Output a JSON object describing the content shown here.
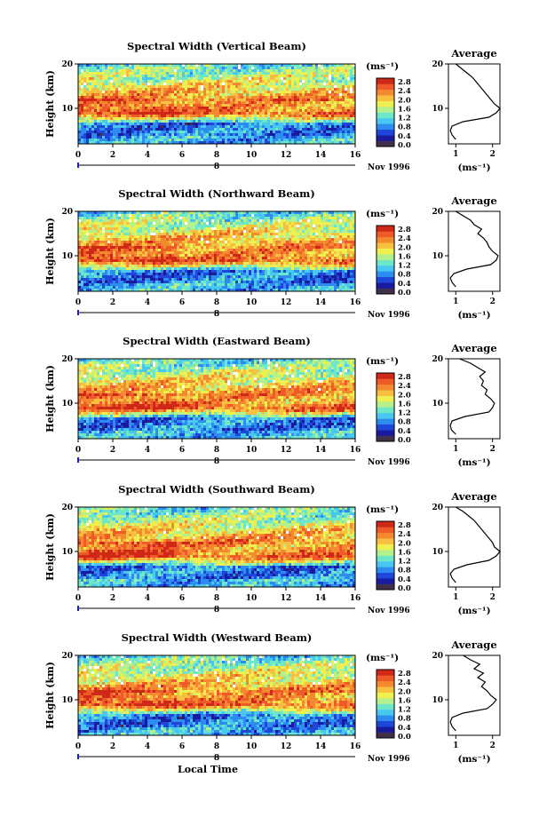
{
  "figure": {
    "x_label": "Local Time",
    "y_label": "Height (km)",
    "date_label": "Nov 1996",
    "day_marker": "8",
    "units": "(ms⁻¹)",
    "avg_title": "Average"
  },
  "colorbar": {
    "ticks": [
      "0.0",
      "0.4",
      "0.8",
      "1.2",
      "1.6",
      "2.0",
      "2.4",
      "2.8"
    ],
    "colors": [
      "#40304a",
      "#1a1a9e",
      "#1e46d8",
      "#2e8cf0",
      "#48c8f0",
      "#6ee6c8",
      "#b4f08c",
      "#eef050",
      "#f8c040",
      "#f48a30",
      "#ee5a28",
      "#d02818"
    ]
  },
  "panels": [
    {
      "title": "Spectral Width (Vertical Beam)",
      "seed": 11
    },
    {
      "title": "Spectral Width (Northward Beam)",
      "seed": 23
    },
    {
      "title": "Spectral Width (Eastward Beam)",
      "seed": 37
    },
    {
      "title": "Spectral Width (Southward Beam)",
      "seed": 51
    },
    {
      "title": "Spectral Width (Westward Beam)",
      "seed": 67
    }
  ],
  "chart_data": [
    {
      "type": "heatmap",
      "title": "Spectral Width (Vertical Beam)",
      "xlabel": "",
      "ylabel": "Height (km)",
      "x_ticks": [
        "0",
        "2",
        "4",
        "6",
        "8",
        "10",
        "12",
        "14",
        "16"
      ],
      "y_ticks": [
        "20",
        "10"
      ],
      "xlim": [
        0,
        16
      ],
      "ylim": [
        2,
        20
      ],
      "colorbar_label": "(ms⁻¹)",
      "colorbar_ticks": [
        0.0,
        0.4,
        0.8,
        1.2,
        1.6,
        2.0,
        2.4,
        2.8
      ],
      "height_km": [
        3,
        4,
        5,
        6,
        7,
        8,
        9,
        10,
        11,
        12,
        13,
        14,
        15,
        16,
        17,
        18,
        19,
        20
      ],
      "mean_width_ms": [
        1.0,
        0.8,
        0.7,
        0.7,
        1.0,
        1.8,
        2.5,
        2.6,
        2.4,
        2.2,
        2.0,
        1.9,
        1.7,
        1.6,
        1.5,
        1.4,
        1.3,
        1.2
      ]
    },
    {
      "type": "line",
      "title": "Average",
      "xlabel": "(ms⁻¹)",
      "ylabel": "",
      "x_ticks": [
        "1",
        "2"
      ],
      "y_ticks": [
        "20",
        "10"
      ],
      "xlim": [
        0.8,
        2.2
      ],
      "ylim": [
        2,
        20
      ],
      "series": [
        {
          "x": [
            1.0,
            0.9,
            0.85,
            0.9,
            1.2,
            1.9,
            2.1,
            2.2,
            2.05,
            1.95,
            1.85,
            1.75,
            1.65,
            1.55,
            1.45,
            1.3,
            1.15,
            1.0
          ],
          "y": [
            3,
            4,
            5,
            6,
            7,
            8,
            9,
            10,
            11,
            12,
            13,
            14,
            15,
            16,
            17,
            18,
            19,
            20
          ]
        }
      ]
    },
    {
      "type": "heatmap",
      "title": "Spectral Width (Northward Beam)",
      "xlabel": "",
      "ylabel": "Height (km)",
      "x_ticks": [
        "0",
        "2",
        "4",
        "6",
        "8",
        "10",
        "12",
        "14",
        "16"
      ],
      "y_ticks": [
        "20",
        "10"
      ],
      "xlim": [
        0,
        16
      ],
      "ylim": [
        2,
        20
      ],
      "colorbar_label": "(ms⁻¹)",
      "colorbar_ticks": [
        0.0,
        0.4,
        0.8,
        1.2,
        1.6,
        2.0,
        2.4,
        2.8
      ]
    },
    {
      "type": "line",
      "title": "Average",
      "xlabel": "(ms⁻¹)",
      "ylabel": "",
      "x_ticks": [
        "1",
        "2"
      ],
      "y_ticks": [
        "20",
        "10"
      ],
      "xlim": [
        0.8,
        2.2
      ],
      "ylim": [
        2,
        20
      ],
      "series": [
        {
          "x": [
            1.0,
            0.9,
            0.85,
            0.95,
            1.3,
            1.95,
            2.1,
            2.15,
            2.0,
            1.9,
            1.85,
            1.75,
            1.6,
            1.7,
            1.5,
            1.4,
            1.2,
            1.0
          ],
          "y": [
            3,
            4,
            5,
            6,
            7,
            8,
            9,
            10,
            11,
            12,
            13,
            14,
            15,
            16,
            17,
            18,
            19,
            20
          ]
        }
      ]
    },
    {
      "type": "heatmap",
      "title": "Spectral Width (Eastward Beam)",
      "xlabel": "",
      "ylabel": "Height (km)",
      "x_ticks": [
        "0",
        "2",
        "4",
        "6",
        "8",
        "10",
        "12",
        "14",
        "16"
      ],
      "y_ticks": [
        "20",
        "10"
      ],
      "xlim": [
        0,
        16
      ],
      "ylim": [
        2,
        20
      ],
      "colorbar_label": "(ms⁻¹)",
      "colorbar_ticks": [
        0.0,
        0.4,
        0.8,
        1.2,
        1.6,
        2.0,
        2.4,
        2.8
      ]
    },
    {
      "type": "line",
      "title": "Average",
      "xlabel": "(ms⁻¹)",
      "ylabel": "",
      "x_ticks": [
        "1",
        "2"
      ],
      "y_ticks": [
        "20",
        "10"
      ],
      "xlim": [
        0.8,
        2.2
      ],
      "ylim": [
        2,
        20
      ],
      "series": [
        {
          "x": [
            1.0,
            0.88,
            0.85,
            0.9,
            1.25,
            1.9,
            2.0,
            2.05,
            1.95,
            1.8,
            1.85,
            1.7,
            1.75,
            1.65,
            1.8,
            1.6,
            1.4,
            1.1
          ],
          "y": [
            3,
            4,
            5,
            6,
            7,
            8,
            9,
            10,
            11,
            12,
            13,
            14,
            15,
            16,
            17,
            18,
            19,
            20
          ]
        }
      ]
    },
    {
      "type": "heatmap",
      "title": "Spectral Width (Southward Beam)",
      "xlabel": "",
      "ylabel": "Height (km)",
      "x_ticks": [
        "0",
        "2",
        "4",
        "6",
        "8",
        "10",
        "12",
        "14",
        "16"
      ],
      "y_ticks": [
        "20",
        "10"
      ],
      "xlim": [
        0,
        16
      ],
      "ylim": [
        2,
        20
      ],
      "colorbar_label": "(ms⁻¹)",
      "colorbar_ticks": [
        0.0,
        0.4,
        0.8,
        1.2,
        1.6,
        2.0,
        2.4,
        2.8
      ]
    },
    {
      "type": "line",
      "title": "Average",
      "xlabel": "(ms⁻¹)",
      "ylabel": "",
      "x_ticks": [
        "1",
        "2"
      ],
      "y_ticks": [
        "20",
        "10"
      ],
      "xlim": [
        0.8,
        2.2
      ],
      "ylim": [
        2,
        20
      ],
      "series": [
        {
          "x": [
            1.0,
            0.9,
            0.85,
            0.95,
            1.3,
            1.9,
            2.1,
            2.2,
            2.05,
            2.0,
            1.9,
            1.8,
            1.7,
            1.6,
            1.5,
            1.35,
            1.2,
            1.0
          ],
          "y": [
            3,
            4,
            5,
            6,
            7,
            8,
            9,
            10,
            11,
            12,
            13,
            14,
            15,
            16,
            17,
            18,
            19,
            20
          ]
        }
      ]
    },
    {
      "type": "heatmap",
      "title": "Spectral Width (Westward Beam)",
      "xlabel": "Local Time",
      "ylabel": "Height (km)",
      "x_ticks": [
        "0",
        "2",
        "4",
        "6",
        "8",
        "10",
        "12",
        "14",
        "16"
      ],
      "y_ticks": [
        "20",
        "10"
      ],
      "xlim": [
        0,
        16
      ],
      "ylim": [
        2,
        20
      ],
      "colorbar_label": "(ms⁻¹)",
      "colorbar_ticks": [
        0.0,
        0.4,
        0.8,
        1.2,
        1.6,
        2.0,
        2.4,
        2.8
      ]
    },
    {
      "type": "line",
      "title": "Average",
      "xlabel": "(ms⁻¹)",
      "ylabel": "",
      "x_ticks": [
        "1",
        "2"
      ],
      "y_ticks": [
        "20",
        "10"
      ],
      "xlim": [
        0.8,
        2.2
      ],
      "ylim": [
        2,
        20
      ],
      "series": [
        {
          "x": [
            1.0,
            0.9,
            0.85,
            0.9,
            1.2,
            1.85,
            2.0,
            2.1,
            1.95,
            1.85,
            1.7,
            1.8,
            1.6,
            1.75,
            1.5,
            1.65,
            1.4,
            1.2
          ],
          "y": [
            3,
            4,
            5,
            6,
            7,
            8,
            9,
            10,
            11,
            12,
            13,
            14,
            15,
            16,
            17,
            18,
            19,
            20
          ]
        }
      ]
    }
  ]
}
